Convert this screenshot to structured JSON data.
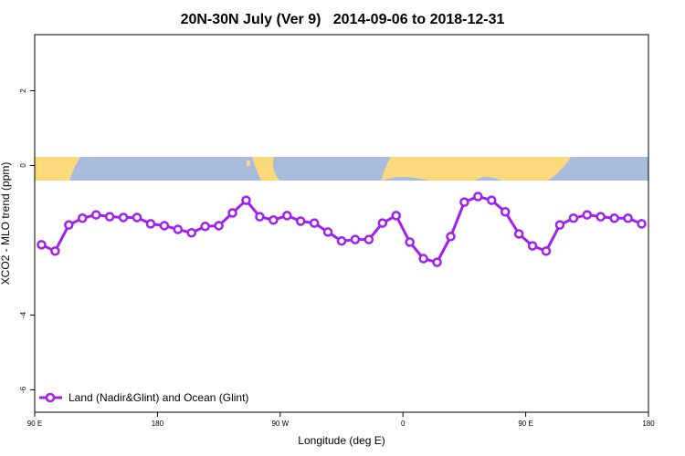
{
  "chart_data": {
    "type": "line",
    "title": "20N-30N July (Ver 9)   2014-09-06 to 2018-12-31",
    "x_label": "Longitude (deg E)",
    "y_label": "XCO2 - MLO trend (ppm)",
    "x": [
      95,
      105,
      115,
      125,
      135,
      145,
      155,
      165,
      175,
      185,
      195,
      205,
      215,
      225,
      235,
      245,
      255,
      265,
      275,
      285,
      295,
      305,
      315,
      325,
      335,
      345,
      355,
      365,
      375,
      385,
      395,
      405,
      415,
      425,
      435,
      445,
      455,
      465,
      475,
      485,
      495,
      505,
      515,
      525,
      535
    ],
    "series": [
      {
        "name": "Land (Nadir&Glint) and Ocean (Glint)",
        "color": "#a020f0",
        "values": [
          -2.12,
          -2.29,
          -1.59,
          -1.41,
          -1.32,
          -1.37,
          -1.39,
          -1.39,
          -1.56,
          -1.61,
          -1.71,
          -1.8,
          -1.63,
          -1.61,
          -1.27,
          -0.93,
          -1.37,
          -1.46,
          -1.34,
          -1.49,
          -1.54,
          -1.78,
          -2.02,
          -1.98,
          -1.98,
          -1.54,
          -1.34,
          -2.05,
          -2.49,
          -2.59,
          -1.9,
          -0.98,
          -0.83,
          -0.93,
          -1.24,
          -1.83,
          -2.15,
          -2.29,
          -1.59,
          -1.41,
          -1.32,
          -1.37,
          -1.41,
          -1.41,
          -1.56
        ]
      }
    ],
    "xlim": [
      90,
      540
    ],
    "xticks": [
      {
        "value": 90,
        "label": "90 E"
      },
      180,
      {
        "value": 270,
        "label": "90 W"
      },
      {
        "value": 360,
        "label": "0"
      },
      {
        "value": 450,
        "label": "90 E"
      },
      {
        "value": 540,
        "label": "180"
      }
    ],
    "ylim": [
      -6.6,
      3.5
    ],
    "yticks": [
      -6,
      -4,
      0,
      2
    ],
    "legend": "bottom-left"
  }
}
